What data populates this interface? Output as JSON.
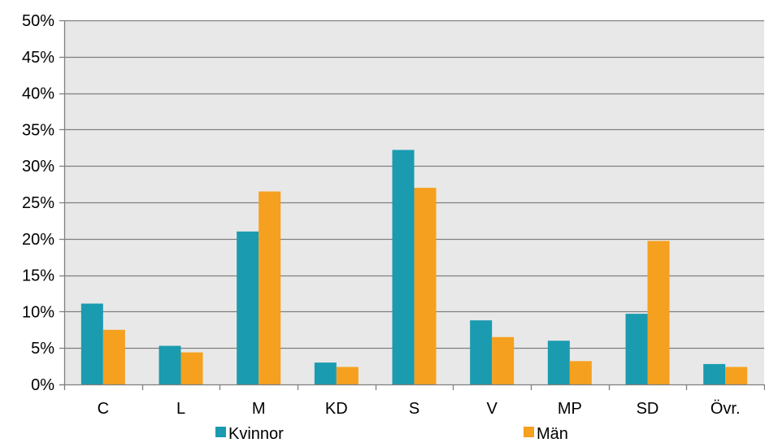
{
  "chart_data": {
    "type": "bar",
    "categories": [
      "C",
      "L",
      "M",
      "KD",
      "S",
      "V",
      "MP",
      "SD",
      "Övr."
    ],
    "series": [
      {
        "name": "Kvinnor",
        "color": "#1a9bb0",
        "values": [
          11.1,
          5.3,
          21.0,
          3.0,
          32.2,
          8.8,
          6.0,
          9.7,
          2.8
        ]
      },
      {
        "name": "Män",
        "color": "#f5a01e",
        "values": [
          7.5,
          4.4,
          26.5,
          2.4,
          27.0,
          6.5,
          3.2,
          19.7,
          2.4
        ]
      }
    ],
    "ylim": [
      0,
      50
    ],
    "yticks": [
      0,
      5,
      10,
      15,
      20,
      25,
      30,
      35,
      40,
      45,
      50
    ],
    "ytick_labels": [
      "0%",
      "5%",
      "10%",
      "15%",
      "20%",
      "25%",
      "30%",
      "35%",
      "40%",
      "45%",
      "50%"
    ],
    "title": "",
    "xlabel": "",
    "ylabel": "",
    "grid": true,
    "legend_position": "bottom",
    "plot_background": "#e8e8e8",
    "gridline_color": "#7f7f7f"
  }
}
